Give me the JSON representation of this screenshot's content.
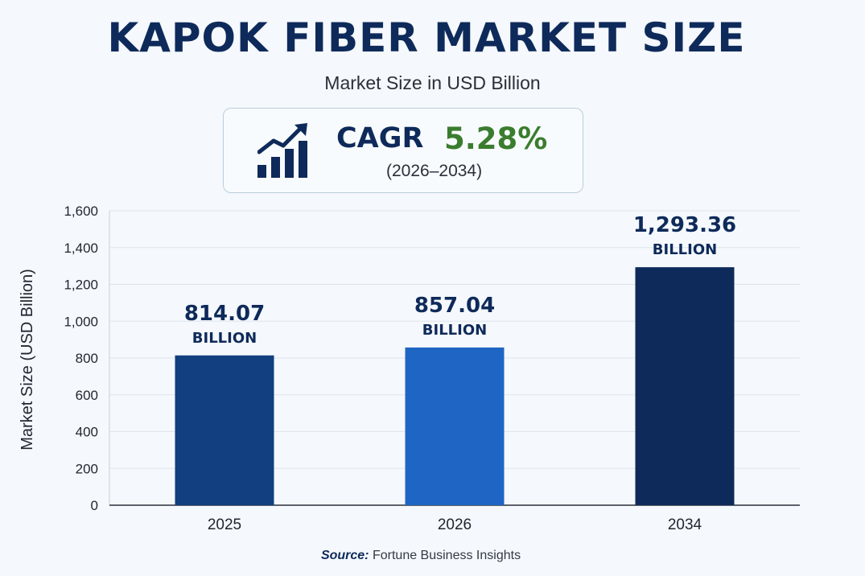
{
  "title": "KAPOK FIBER MARKET SIZE",
  "subtitle": "Market Size in USD Billion",
  "cagr": {
    "label": "CAGR",
    "value": "5.28%",
    "period": "(2026–2034)",
    "icon": "bar-chart-growth-icon"
  },
  "source": {
    "label": "Source:",
    "text": "Fortune Business Insights"
  },
  "chart_data": {
    "type": "bar",
    "categories": [
      "2025",
      "2026",
      "2034"
    ],
    "values": [
      814.07,
      857.04,
      1293.36
    ],
    "value_labels": [
      "814.07",
      "857.04",
      "1,293.36"
    ],
    "unit_label": "BILLION",
    "xlabel": "",
    "ylabel": "Market Size (USD Billion)",
    "ylim": [
      0,
      1600
    ],
    "yticks": [
      0,
      200,
      400,
      600,
      800,
      1000,
      1200,
      1400,
      1600
    ],
    "ytick_labels": [
      "0",
      "200",
      "400",
      "600",
      "800",
      "1,000",
      "1,200",
      "1,400",
      "1,600"
    ],
    "grid": true,
    "colors": [
      "#123f7f",
      "#1f66c4",
      "#0e2a5a"
    ],
    "label_color": "#0e2a5a"
  }
}
